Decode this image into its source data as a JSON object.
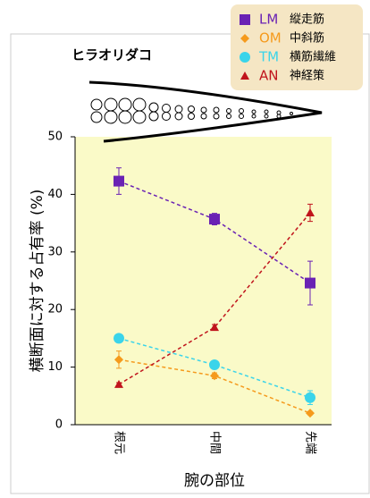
{
  "chart_data": {
    "type": "line",
    "title": "ヒラオリダコ",
    "y_label": "横断面に対する占有率 (%)",
    "x_label": "腕の部位",
    "categories": [
      "根元",
      "中間",
      "先端"
    ],
    "ylim": [
      0,
      50
    ],
    "yticks": [
      0,
      10,
      20,
      30,
      40,
      50
    ],
    "series": [
      {
        "name": "LM",
        "label": "縦走筋",
        "color": "#6a22b4",
        "marker": "square",
        "values": [
          42.3,
          35.7,
          24.6
        ],
        "errors": [
          2.3,
          1.0,
          3.8
        ]
      },
      {
        "name": "OM",
        "label": "中斜筋",
        "color": "#f59a1c",
        "marker": "diamond",
        "values": [
          11.3,
          8.5,
          2.0
        ],
        "errors": [
          1.5,
          0.5,
          0.3
        ]
      },
      {
        "name": "TM",
        "label": "横筋繊維",
        "color": "#3ad4ea",
        "marker": "circle",
        "values": [
          15.0,
          10.4,
          4.7
        ],
        "errors": [
          0.3,
          0.3,
          1.2
        ]
      },
      {
        "name": "AN",
        "label": "神経策",
        "color": "#c0141c",
        "marker": "triangle",
        "values": [
          7.0,
          16.9,
          36.8
        ],
        "errors": [
          0.3,
          0.5,
          1.5
        ]
      }
    ]
  }
}
